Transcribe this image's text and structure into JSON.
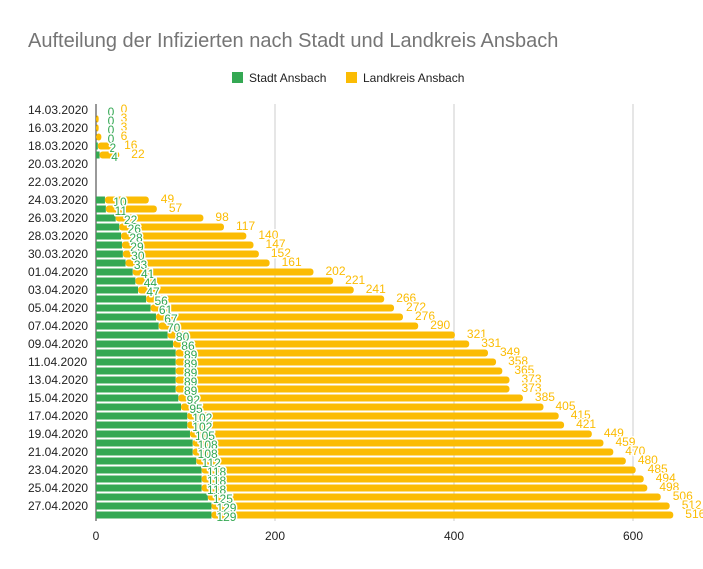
{
  "chart_data": {
    "type": "bar",
    "orientation": "horizontal",
    "stacked": true,
    "title": "Aufteilung der Infizierten nach Stadt und Landkreis Ansbach",
    "legend_position": "top",
    "grid": true,
    "xlim": [
      0,
      700
    ],
    "x_ticks": [
      "0",
      "200",
      "400",
      "600"
    ],
    "categories": [
      "14.03.2020",
      "15.03.2020",
      "16.03.2020",
      "17.03.2020",
      "18.03.2020",
      "19.03.2020",
      "20.03.2020",
      "21.03.2020",
      "22.03.2020",
      "23.03.2020",
      "24.03.2020",
      "25.03.2020",
      "26.03.2020",
      "27.03.2020",
      "28.03.2020",
      "29.03.2020",
      "30.03.2020",
      "31.03.2020",
      "01.04.2020",
      "02.04.2020",
      "03.04.2020",
      "04.04.2020",
      "05.04.2020",
      "06.04.2020",
      "07.04.2020",
      "08.04.2020",
      "09.04.2020",
      "10.04.2020",
      "11.04.2020",
      "12.04.2020",
      "13.04.2020",
      "14.04.2020",
      "15.04.2020",
      "16.04.2020",
      "17.04.2020",
      "18.04.2020",
      "19.04.2020",
      "20.04.2020",
      "21.04.2020",
      "22.04.2020",
      "23.04.2020",
      "24.04.2020",
      "25.04.2020",
      "26.04.2020",
      "27.04.2020",
      "28.04.2020"
    ],
    "shown_category_labels": [
      "14.03.2020",
      "16.03.2020",
      "18.03.2020",
      "20.03.2020",
      "22.03.2020",
      "24.03.2020",
      "26.03.2020",
      "28.03.2020",
      "30.03.2020",
      "01.04.2020",
      "03.04.2020",
      "05.04.2020",
      "07.04.2020",
      "09.04.2020",
      "11.04.2020",
      "13.04.2020",
      "15.04.2020",
      "17.04.2020",
      "19.04.2020",
      "21.04.2020",
      "23.04.2020",
      "25.04.2020",
      "27.04.2020"
    ],
    "series": [
      {
        "name": "Stadt Ansbach",
        "color": "#34a853",
        "values": [
          0,
          0,
          0,
          0,
          2,
          4,
          null,
          null,
          null,
          null,
          10,
          11,
          22,
          26,
          28,
          29,
          30,
          33,
          41,
          44,
          47,
          56,
          61,
          67,
          70,
          80,
          86,
          89,
          89,
          89,
          89,
          89,
          92,
          95,
          102,
          102,
          105,
          108,
          108,
          112,
          118,
          118,
          118,
          125,
          129,
          129
        ]
      },
      {
        "name": "Landkreis Ansbach",
        "color": "#fbbc04",
        "values": [
          0,
          3,
          3,
          6,
          16,
          22,
          null,
          null,
          null,
          null,
          49,
          57,
          98,
          117,
          140,
          147,
          152,
          161,
          202,
          221,
          241,
          266,
          272,
          276,
          290,
          321,
          331,
          349,
          358,
          365,
          373,
          373,
          385,
          405,
          415,
          421,
          449,
          459,
          470,
          480,
          485,
          494,
          498,
          506,
          512,
          516
        ]
      }
    ]
  }
}
